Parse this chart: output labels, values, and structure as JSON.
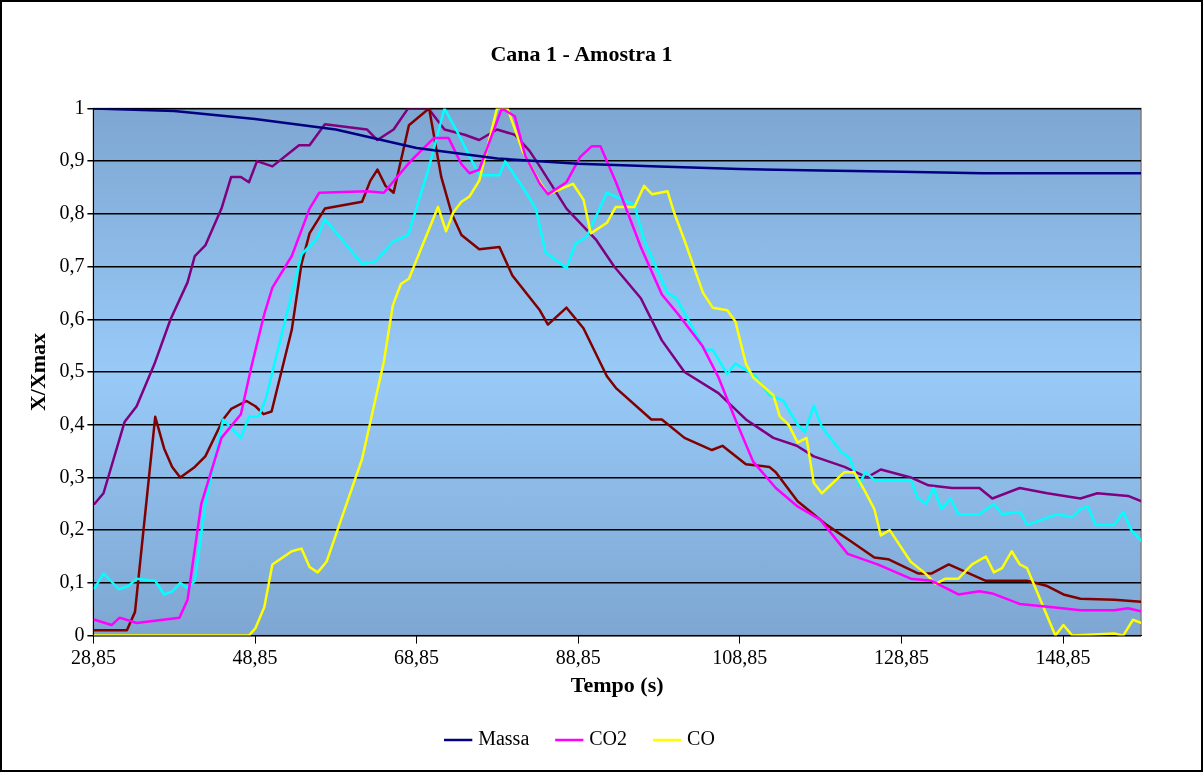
{
  "chart_data": {
    "type": "line",
    "title": "Cana 1 - Amostra 1",
    "xlabel": "Tempo (s)",
    "ylabel": "X/Xmax",
    "xlim": [
      28.85,
      158.5
    ],
    "xticks": [
      {
        "value": 28.85,
        "label": "28,85"
      },
      {
        "value": 48.85,
        "label": "48,85"
      },
      {
        "value": 68.85,
        "label": "68,85"
      },
      {
        "value": 88.85,
        "label": "88,85"
      },
      {
        "value": 108.85,
        "label": "108,85"
      },
      {
        "value": 128.85,
        "label": "128,85"
      },
      {
        "value": 148.85,
        "label": "148,85"
      }
    ],
    "ylim": [
      0,
      1
    ],
    "yticks": [
      0,
      {
        "value": 0.1,
        "label": "0,1"
      },
      {
        "value": 0.2,
        "label": "0,2"
      },
      {
        "value": 0.3,
        "label": "0,3"
      },
      {
        "value": 0.4,
        "label": "0,4"
      },
      {
        "value": 0.5,
        "label": "0,5"
      },
      {
        "value": 0.6,
        "label": "0,6"
      },
      {
        "value": 0.7,
        "label": "0,7"
      },
      {
        "value": 0.8,
        "label": "0,8"
      },
      {
        "value": 0.9,
        "label": "0,9"
      },
      1
    ],
    "grid": "y",
    "legend": "bottom",
    "marker": "none",
    "line_style": "solid",
    "series": [
      {
        "name": "Massa",
        "color": "#000080",
        "x": [
          28.85,
          38.85,
          48.85,
          58.85,
          68.85,
          78.85,
          88.85,
          98.85,
          108.85,
          118.85,
          128.85,
          138.85,
          158.5
        ],
        "values": [
          1.0,
          0.995,
          0.98,
          0.96,
          0.925,
          0.905,
          0.895,
          0.89,
          0.885,
          0.882,
          0.88,
          0.877,
          0.877
        ]
      },
      {
        "name": "CO2",
        "color": "#ff00ff",
        "x": [
          29.0,
          31.1,
          32.1,
          34.2,
          39.5,
          40.5,
          42.2,
          44.7,
          47.1,
          48.4,
          50.0,
          51.0,
          53.4,
          55.6,
          56.8,
          62.7,
          64.8,
          68.1,
          71.0,
          72.8,
          74.4,
          75.4,
          76.6,
          79.4,
          81.0,
          82.3,
          84.1,
          85.1,
          87.4,
          89.1,
          90.5,
          91.6,
          93.6,
          96.6,
          99.2,
          101.2,
          104.2,
          106.2,
          108.3,
          110.5,
          113.3,
          116.0,
          118.8,
          122.2,
          125.9,
          130.0,
          132.6,
          135.9,
          138.5,
          140.1,
          143.5,
          147.6,
          151.0,
          155.2,
          156.9,
          158.5
        ],
        "values": [
          0.03,
          0.02,
          0.034,
          0.024,
          0.034,
          0.068,
          0.25,
          0.375,
          0.42,
          0.51,
          0.61,
          0.66,
          0.72,
          0.81,
          0.84,
          0.843,
          0.84,
          0.9,
          0.944,
          0.944,
          0.894,
          0.877,
          0.884,
          1.0,
          0.985,
          0.91,
          0.857,
          0.837,
          0.86,
          0.908,
          0.928,
          0.928,
          0.857,
          0.737,
          0.647,
          0.61,
          0.55,
          0.49,
          0.41,
          0.33,
          0.28,
          0.245,
          0.22,
          0.155,
          0.135,
          0.108,
          0.104,
          0.078,
          0.084,
          0.08,
          0.06,
          0.054,
          0.048,
          0.048,
          0.052,
          0.046
        ]
      },
      {
        "name": "CO",
        "color": "#ffff00",
        "x": [
          29.0,
          48.1,
          48.9,
          50.0,
          51.0,
          53.4,
          54.6,
          55.6,
          56.6,
          57.7,
          62.1,
          64.8,
          65.9,
          66.9,
          67.9,
          71.5,
          72.5,
          73.4,
          74.4,
          75.4,
          76.6,
          78.8,
          80.1,
          82.0,
          83.6,
          85.1,
          88.2,
          89.5,
          90.4,
          92.4,
          93.5,
          95.8,
          97.0,
          98.0,
          99.9,
          100.7,
          102.0,
          104.3,
          105.5,
          107.3,
          108.3,
          109.6,
          110.5,
          113.0,
          113.8,
          114.9,
          116.0,
          117.1,
          118.0,
          119.0,
          121.8,
          123.0,
          124.3,
          125.5,
          126.3,
          127.4,
          130.0,
          131.8,
          133.1,
          134.3,
          135.9,
          137.6,
          139.3,
          140.3,
          141.3,
          142.5,
          143.5,
          144.4,
          147.9,
          148.9,
          150.0,
          155.2,
          156.3,
          157.5,
          158.5
        ],
        "values": [
          0,
          0,
          0.014,
          0.054,
          0.135,
          0.16,
          0.165,
          0.13,
          0.12,
          0.14,
          0.335,
          0.52,
          0.626,
          0.667,
          0.677,
          0.813,
          0.767,
          0.803,
          0.823,
          0.833,
          0.863,
          1.0,
          1.0,
          0.918,
          0.873,
          0.837,
          0.857,
          0.827,
          0.763,
          0.783,
          0.813,
          0.813,
          0.853,
          0.837,
          0.843,
          0.803,
          0.75,
          0.65,
          0.622,
          0.617,
          0.596,
          0.516,
          0.49,
          0.456,
          0.416,
          0.4,
          0.366,
          0.375,
          0.29,
          0.27,
          0.31,
          0.31,
          0.275,
          0.24,
          0.19,
          0.2,
          0.14,
          0.118,
          0.098,
          0.108,
          0.108,
          0.135,
          0.15,
          0.12,
          0.128,
          0.16,
          0.135,
          0.128,
          0,
          0.02,
          0,
          0.004,
          0,
          0.03,
          0.024
        ]
      },
      {
        "color": "#00ffff",
        "x": [
          29.0,
          30.1,
          32.0,
          33.2,
          34.2,
          36.5,
          37.6,
          38.6,
          39.6,
          40.5,
          41.4,
          42.7,
          44.9,
          47.1,
          48.1,
          49.3,
          50.2,
          54.6,
          56.5,
          57.5,
          62.1,
          63.8,
          65.9,
          67.8,
          70.3,
          72.3,
          74.0,
          76.6,
          79.1,
          79.8,
          82.0,
          83.6,
          84.8,
          87.4,
          88.5,
          89.9,
          92.4,
          95.8,
          97.0,
          99.9,
          101.0,
          104.5,
          105.5,
          107.3,
          108.3,
          110.8,
          112.5,
          114.2,
          116.0,
          116.9,
          118.0,
          119.0,
          121.3,
          122.5,
          123.6,
          124.4,
          125.5,
          130.0,
          130.9,
          131.9,
          132.8,
          133.8,
          134.9,
          135.9,
          138.5,
          140.3,
          141.3,
          143.5,
          144.4,
          148.1,
          150.0,
          151.0,
          151.9,
          152.9,
          155.2,
          156.3,
          157.3,
          158.5
        ],
        "values": [
          0.09,
          0.118,
          0.088,
          0.094,
          0.108,
          0.104,
          0.078,
          0.084,
          0.1,
          0.09,
          0.104,
          0.25,
          0.41,
          0.375,
          0.415,
          0.415,
          0.45,
          0.723,
          0.753,
          0.79,
          0.705,
          0.71,
          0.747,
          0.76,
          0.884,
          1.0,
          0.952,
          0.873,
          0.873,
          0.9,
          0.85,
          0.81,
          0.727,
          0.697,
          0.743,
          0.757,
          0.84,
          0.817,
          0.75,
          0.65,
          0.64,
          0.542,
          0.542,
          0.496,
          0.516,
          0.492,
          0.456,
          0.446,
          0.4,
          0.386,
          0.436,
          0.396,
          0.35,
          0.335,
          0.285,
          0.311,
          0.295,
          0.295,
          0.26,
          0.25,
          0.28,
          0.24,
          0.26,
          0.23,
          0.23,
          0.25,
          0.23,
          0.235,
          0.21,
          0.23,
          0.225,
          0.24,
          0.245,
          0.21,
          0.21,
          0.235,
          0.2,
          0.18
        ]
      },
      {
        "color": "#800000",
        "x": [
          29.0,
          33.0,
          34.0,
          36.5,
          37.6,
          38.6,
          39.6,
          41.4,
          42.7,
          44.9,
          45.9,
          47.8,
          48.9,
          49.9,
          50.9,
          53.4,
          54.6,
          55.6,
          57.5,
          62.1,
          63.1,
          64.0,
          65.0,
          66.0,
          67.9,
          70.4,
          71.9,
          73.2,
          74.4,
          76.6,
          79.1,
          80.7,
          84.1,
          85.1,
          87.4,
          89.5,
          92.4,
          93.5,
          97.9,
          99.2,
          102.0,
          105.4,
          106.7,
          109.6,
          112.5,
          113.3,
          116.0,
          119.6,
          122.5,
          125.5,
          127.2,
          130.9,
          132.6,
          134.7,
          139.3,
          144.4,
          146.9,
          148.9,
          151.0,
          155.2,
          158.5
        ],
        "values": [
          0.01,
          0.01,
          0.045,
          0.415,
          0.355,
          0.32,
          0.3,
          0.32,
          0.34,
          0.41,
          0.43,
          0.445,
          0.435,
          0.42,
          0.425,
          0.58,
          0.705,
          0.763,
          0.81,
          0.823,
          0.862,
          0.884,
          0.853,
          0.84,
          0.968,
          1.0,
          0.87,
          0.8,
          0.76,
          0.733,
          0.737,
          0.683,
          0.617,
          0.59,
          0.622,
          0.583,
          0.492,
          0.47,
          0.41,
          0.41,
          0.375,
          0.352,
          0.36,
          0.325,
          0.32,
          0.31,
          0.255,
          0.21,
          0.18,
          0.148,
          0.145,
          0.118,
          0.118,
          0.135,
          0.104,
          0.104,
          0.094,
          0.078,
          0.07,
          0.068,
          0.064
        ]
      },
      {
        "color": "#800080",
        "x": [
          29.0,
          30.1,
          32.7,
          34.2,
          36.4,
          38.4,
          40.5,
          41.4,
          42.7,
          44.7,
          45.9,
          47.1,
          48.1,
          49.1,
          51.0,
          54.3,
          55.6,
          57.5,
          62.7,
          64.0,
          66.0,
          67.8,
          70.3,
          72.3,
          74.8,
          76.6,
          78.8,
          81.0,
          82.8,
          84.1,
          87.4,
          91.1,
          93.3,
          96.6,
          99.2,
          102.0,
          106.2,
          109.6,
          113.0,
          115.9,
          118.0,
          121.8,
          124.6,
          126.3,
          130.0,
          132.2,
          135.1,
          138.5,
          140.1,
          143.5,
          146.9,
          151.0,
          153.1,
          156.9,
          158.5
        ],
        "values": [
          0.25,
          0.27,
          0.405,
          0.435,
          0.515,
          0.6,
          0.67,
          0.72,
          0.74,
          0.81,
          0.87,
          0.87,
          0.86,
          0.9,
          0.89,
          0.93,
          0.93,
          0.97,
          0.96,
          0.94,
          0.96,
          1.0,
          1.0,
          0.96,
          0.95,
          0.94,
          0.96,
          0.95,
          0.92,
          0.89,
          0.81,
          0.75,
          0.7,
          0.64,
          0.56,
          0.5,
          0.46,
          0.41,
          0.375,
          0.36,
          0.34,
          0.32,
          0.3,
          0.315,
          0.3,
          0.285,
          0.28,
          0.28,
          0.26,
          0.28,
          0.27,
          0.26,
          0.27,
          0.265,
          0.255
        ]
      }
    ]
  }
}
